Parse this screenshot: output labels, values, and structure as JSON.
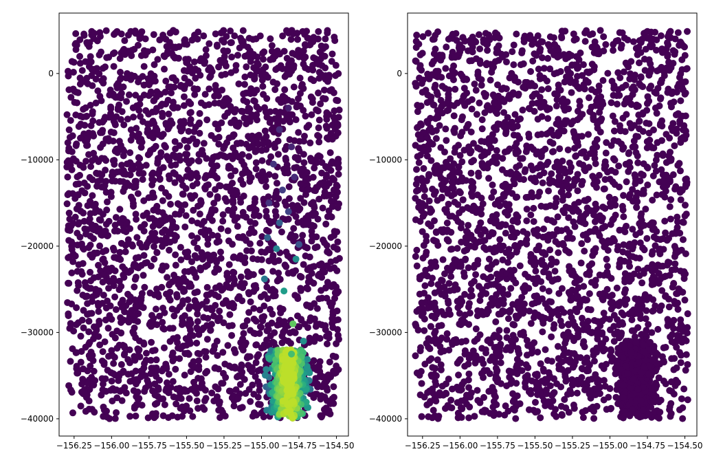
{
  "chart_data": [
    {
      "type": "scatter",
      "title": "",
      "xlabel": "",
      "ylabel": "",
      "xlim": [
        -156.35,
        -154.42
      ],
      "ylim": [
        -42000,
        7000
      ],
      "xticks": [
        -156.25,
        -156.0,
        -155.75,
        -155.5,
        -155.25,
        -155.0,
        -154.75,
        -154.5
      ],
      "xtick_labels": [
        "−156.25",
        "−156.00",
        "−155.75",
        "−155.50",
        "−155.25",
        "−155.00",
        "−154.75",
        "−154.50"
      ],
      "yticks": [
        0,
        -10000,
        -20000,
        -30000,
        -40000
      ],
      "ytick_labels": [
        "0",
        "−10000",
        "−20000",
        "−30000",
        "−40000"
      ],
      "grid": false,
      "colormap": "viridis",
      "color_range": [
        0,
        1
      ],
      "background_points": {
        "count": 2600,
        "x_range": [
          -156.3,
          -154.48
        ],
        "y_range": [
          -40000,
          5000
        ],
        "color_value": 0
      },
      "points": [
        {
          "x": -154.82,
          "y": -4000,
          "c": 0.08
        },
        {
          "x": -154.88,
          "y": -6500,
          "c": 0.12
        },
        {
          "x": -154.8,
          "y": -8500,
          "c": 0.1
        },
        {
          "x": -154.92,
          "y": -10500,
          "c": 0.15
        },
        {
          "x": -154.78,
          "y": -12000,
          "c": 0.12
        },
        {
          "x": -154.86,
          "y": -13500,
          "c": 0.18
        },
        {
          "x": -154.95,
          "y": -15000,
          "c": 0.15
        },
        {
          "x": -154.82,
          "y": -16000,
          "c": 0.2
        },
        {
          "x": -154.88,
          "y": -17300,
          "c": 0.3
        },
        {
          "x": -154.96,
          "y": -19000,
          "c": 0.32
        },
        {
          "x": -154.75,
          "y": -19800,
          "c": 0.25
        },
        {
          "x": -154.9,
          "y": -20300,
          "c": 0.45
        },
        {
          "x": -154.77,
          "y": -21500,
          "c": 0.5
        },
        {
          "x": -154.98,
          "y": -23800,
          "c": 0.4
        },
        {
          "x": -154.85,
          "y": -25200,
          "c": 0.55
        },
        {
          "x": -154.79,
          "y": -29000,
          "c": 0.75
        },
        {
          "x": -154.72,
          "y": -31000,
          "c": 0.5
        },
        {
          "x": -154.8,
          "y": -32500,
          "c": 0.7
        },
        {
          "x": -154.95,
          "y": -33000,
          "c": 0.6
        }
      ],
      "cluster": {
        "count": 700,
        "center_x": -154.82,
        "center_y": -37000,
        "spread_x": 0.12,
        "y_range": [
          -40000,
          -32000
        ],
        "color_range": [
          0.15,
          0.9
        ]
      }
    },
    {
      "type": "scatter",
      "title": "",
      "xlabel": "",
      "ylabel": "",
      "xlim": [
        -156.35,
        -154.42
      ],
      "ylim": [
        -42000,
        7000
      ],
      "xticks": [
        -156.25,
        -156.0,
        -155.75,
        -155.5,
        -155.25,
        -155.0,
        -154.75,
        -154.5
      ],
      "xtick_labels": [
        "−156.25",
        "−156.00",
        "−155.75",
        "−155.50",
        "−155.25",
        "−155.00",
        "−154.75",
        "−154.50"
      ],
      "yticks": [
        0,
        -10000,
        -20000,
        -30000,
        -40000
      ],
      "ytick_labels": [
        "0",
        "−10000",
        "−20000",
        "−30000",
        "−40000"
      ],
      "grid": false,
      "colormap": "viridis",
      "background_points": {
        "count": 2600,
        "x_range": [
          -156.3,
          -154.48
        ],
        "y_range": [
          -40000,
          5000
        ],
        "color_value": 0
      },
      "cluster": {
        "count": 700,
        "center_x": -154.82,
        "center_y": -37000,
        "spread_x": 0.12,
        "y_range": [
          -40000,
          -31000
        ],
        "color_value": 0
      }
    }
  ],
  "colors": {
    "viridis_low": "#440154",
    "viridis_mid": "#21918c",
    "viridis_high": "#fde725",
    "axis": "#000000",
    "background": "#ffffff"
  }
}
